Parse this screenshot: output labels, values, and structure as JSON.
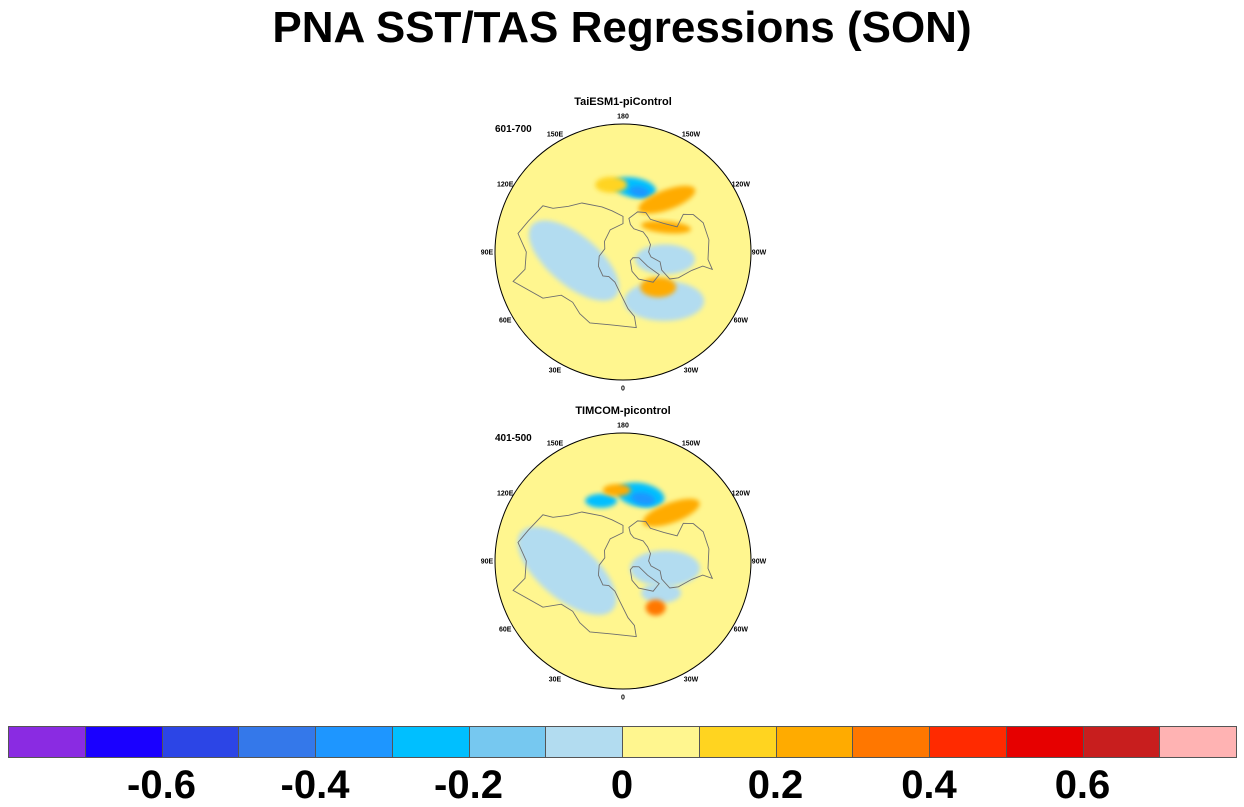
{
  "title": "PNA SST/TAS Regressions (SON)",
  "panels": [
    {
      "title": "TaiESM1-piControl",
      "period": "601-700",
      "lon_labels": [
        "180",
        "150E",
        "120E",
        "90E",
        "60E",
        "30E",
        "0",
        "30W",
        "60W",
        "90W",
        "120W",
        "150W"
      ],
      "anomalies": [
        {
          "lon": 190,
          "lat": 44,
          "rx": 22,
          "ry": 10,
          "level": -0.25,
          "rot": 10
        },
        {
          "lon": 195,
          "lat": 46,
          "rx": 10,
          "ry": 5,
          "level": -0.35,
          "rot": 10
        },
        {
          "lon": 220,
          "lat": 42,
          "rx": 30,
          "ry": 10,
          "level": 0.25,
          "rot": -20
        },
        {
          "lon": 240,
          "lat": 55,
          "rx": 25,
          "ry": 6,
          "level": 0.25,
          "rot": 5
        },
        {
          "lon": 170,
          "lat": 42,
          "rx": 16,
          "ry": 8,
          "level": 0.15,
          "rot": 0
        },
        {
          "lon": 80,
          "lat": 55,
          "rx": 55,
          "ry": 25,
          "level": -0.05,
          "rot": 40
        },
        {
          "lon": 320,
          "lat": 45,
          "rx": 40,
          "ry": 20,
          "level": -0.05,
          "rot": 0
        },
        {
          "lon": 315,
          "lat": 55,
          "rx": 18,
          "ry": 10,
          "level": 0.25,
          "rot": 0
        },
        {
          "lon": 280,
          "lat": 60,
          "rx": 30,
          "ry": 15,
          "level": -0.05,
          "rot": 0
        }
      ]
    },
    {
      "title": "TIMCOM-picontrol",
      "period": "401-500",
      "lon_labels": [
        "180",
        "150E",
        "120E",
        "90E",
        "60E",
        "30E",
        "0",
        "30W",
        "60W",
        "90W",
        "120W",
        "150W"
      ],
      "anomalies": [
        {
          "lon": 195,
          "lat": 42,
          "rx": 24,
          "ry": 12,
          "level": -0.25,
          "rot": 10
        },
        {
          "lon": 198,
          "lat": 44,
          "rx": 12,
          "ry": 6,
          "level": -0.35,
          "rot": 10
        },
        {
          "lon": 160,
          "lat": 45,
          "rx": 16,
          "ry": 7,
          "level": -0.25,
          "rot": 0
        },
        {
          "lon": 225,
          "lat": 42,
          "rx": 30,
          "ry": 10,
          "level": 0.25,
          "rot": -20
        },
        {
          "lon": 175,
          "lat": 40,
          "rx": 14,
          "ry": 6,
          "level": 0.25,
          "rot": 0
        },
        {
          "lon": 80,
          "lat": 50,
          "rx": 60,
          "ry": 28,
          "level": -0.05,
          "rot": 40
        },
        {
          "lon": 310,
          "lat": 55,
          "rx": 20,
          "ry": 10,
          "level": -0.05,
          "rot": 0
        },
        {
          "lon": 325,
          "lat": 50,
          "rx": 10,
          "ry": 8,
          "level": 0.35,
          "rot": 0
        },
        {
          "lon": 280,
          "lat": 60,
          "rx": 35,
          "ry": 18,
          "level": -0.05,
          "rot": 0
        }
      ]
    }
  ],
  "colorbar": {
    "colors": [
      "#8a2be2",
      "#1a00ff",
      "#2c45e6",
      "#3478ea",
      "#1e96ff",
      "#00bfff",
      "#76c8f0",
      "#b2dcf0",
      "#fff68f",
      "#ffd420",
      "#ffab00",
      "#ff7700",
      "#ff2a00",
      "#e60000",
      "#c81e1e",
      "#ffb3b3"
    ],
    "bounds": [
      -0.7,
      -0.6,
      -0.5,
      -0.4,
      -0.3,
      -0.2,
      -0.1,
      0,
      0.1,
      0.2,
      0.3,
      0.4,
      0.5,
      0.6,
      0.7
    ],
    "labels": [
      "-0.6",
      "-0.4",
      "-0.2",
      "0",
      "0.2",
      "0.4",
      "0.6"
    ]
  }
}
